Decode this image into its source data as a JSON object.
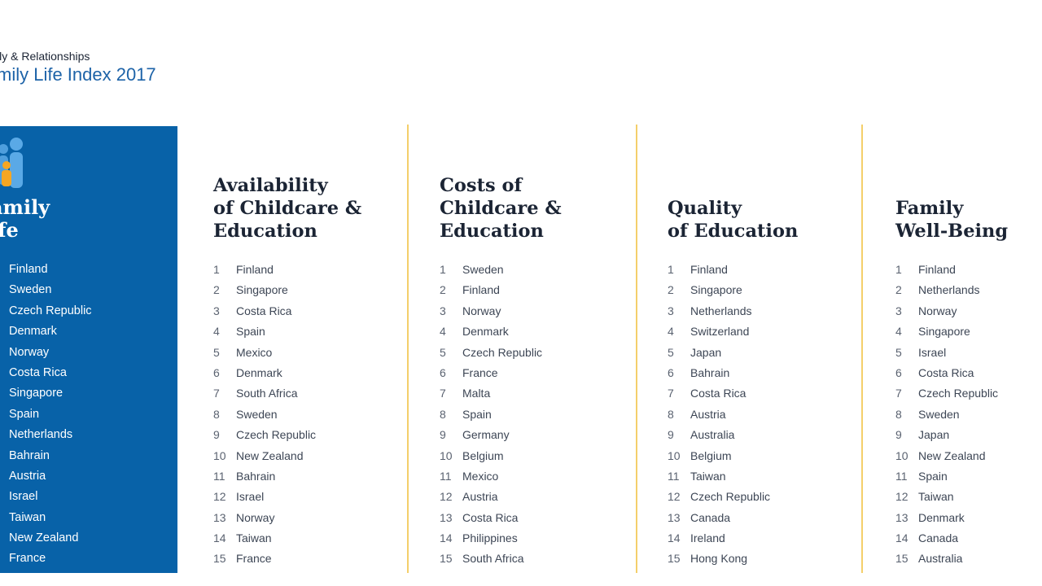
{
  "header": {
    "subtitle": "ily & Relationships",
    "title": "mily Life Index 2017"
  },
  "panel": {
    "title_line1": "amily",
    "title_line2": "ife",
    "icon": "family-icon",
    "items": [
      "Finland",
      "Sweden",
      "Czech Republic",
      "Denmark",
      "Norway",
      "Costa Rica",
      "Singapore",
      "Spain",
      "Netherlands",
      "Bahrain",
      "Austria",
      "Israel",
      "Taiwan",
      "New Zealand",
      "France"
    ]
  },
  "columns": [
    {
      "title_lines": [
        "Availability",
        "of Childcare &",
        "Education"
      ],
      "rows": [
        {
          "rank": "1",
          "country": "Finland"
        },
        {
          "rank": "2",
          "country": "Singapore"
        },
        {
          "rank": "3",
          "country": "Costa Rica"
        },
        {
          "rank": "4",
          "country": "Spain"
        },
        {
          "rank": "5",
          "country": "Mexico"
        },
        {
          "rank": "6",
          "country": "Denmark"
        },
        {
          "rank": "7",
          "country": "South Africa"
        },
        {
          "rank": "8",
          "country": "Sweden"
        },
        {
          "rank": "9",
          "country": "Czech Republic"
        },
        {
          "rank": "10",
          "country": "New Zealand"
        },
        {
          "rank": "11",
          "country": "Bahrain"
        },
        {
          "rank": "12",
          "country": "Israel"
        },
        {
          "rank": "13",
          "country": "Norway"
        },
        {
          "rank": "14",
          "country": "Taiwan"
        },
        {
          "rank": "15",
          "country": "France"
        }
      ]
    },
    {
      "title_lines": [
        "Costs of",
        "Childcare &",
        "Education"
      ],
      "rows": [
        {
          "rank": "1",
          "country": "Sweden"
        },
        {
          "rank": "2",
          "country": "Finland"
        },
        {
          "rank": "3",
          "country": "Norway"
        },
        {
          "rank": "4",
          "country": "Denmark"
        },
        {
          "rank": "5",
          "country": "Czech Republic"
        },
        {
          "rank": "6",
          "country": "France"
        },
        {
          "rank": "7",
          "country": "Malta"
        },
        {
          "rank": "8",
          "country": "Spain"
        },
        {
          "rank": "9",
          "country": "Germany"
        },
        {
          "rank": "10",
          "country": "Belgium"
        },
        {
          "rank": "11",
          "country": "Mexico"
        },
        {
          "rank": "12",
          "country": "Austria"
        },
        {
          "rank": "13",
          "country": "Costa Rica"
        },
        {
          "rank": "14",
          "country": "Philippines"
        },
        {
          "rank": "15",
          "country": "South Africa"
        }
      ]
    },
    {
      "title_lines": [
        "Quality",
        "of Education"
      ],
      "rows": [
        {
          "rank": "1",
          "country": "Finland"
        },
        {
          "rank": "2",
          "country": "Singapore"
        },
        {
          "rank": "3",
          "country": "Netherlands"
        },
        {
          "rank": "4",
          "country": "Switzerland"
        },
        {
          "rank": "5",
          "country": "Japan"
        },
        {
          "rank": "6",
          "country": "Bahrain"
        },
        {
          "rank": "7",
          "country": "Costa Rica"
        },
        {
          "rank": "8",
          "country": "Austria"
        },
        {
          "rank": "9",
          "country": "Australia"
        },
        {
          "rank": "10",
          "country": "Belgium"
        },
        {
          "rank": "11",
          "country": "Taiwan"
        },
        {
          "rank": "12",
          "country": "Czech Republic"
        },
        {
          "rank": "13",
          "country": "Canada"
        },
        {
          "rank": "14",
          "country": "Ireland"
        },
        {
          "rank": "15",
          "country": "Hong Kong"
        }
      ]
    },
    {
      "title_lines": [
        "Family",
        "Well-Being"
      ],
      "rows": [
        {
          "rank": "1",
          "country": "Finland"
        },
        {
          "rank": "2",
          "country": "Netherlands"
        },
        {
          "rank": "3",
          "country": "Norway"
        },
        {
          "rank": "4",
          "country": "Singapore"
        },
        {
          "rank": "5",
          "country": "Israel"
        },
        {
          "rank": "6",
          "country": "Costa Rica"
        },
        {
          "rank": "7",
          "country": "Czech Republic"
        },
        {
          "rank": "8",
          "country": "Sweden"
        },
        {
          "rank": "9",
          "country": "Japan"
        },
        {
          "rank": "10",
          "country": "New Zealand"
        },
        {
          "rank": "11",
          "country": "Spain"
        },
        {
          "rank": "12",
          "country": "Taiwan"
        },
        {
          "rank": "13",
          "country": "Denmark"
        },
        {
          "rank": "14",
          "country": "Canada"
        },
        {
          "rank": "15",
          "country": "Australia"
        }
      ]
    }
  ],
  "colors": {
    "panel_blue": "#0862a8",
    "title_blue": "#1d63a8",
    "separator_yellow": "#f4cf6b",
    "icon_light_blue": "#5aa9e6",
    "icon_orange": "#f5a623"
  }
}
